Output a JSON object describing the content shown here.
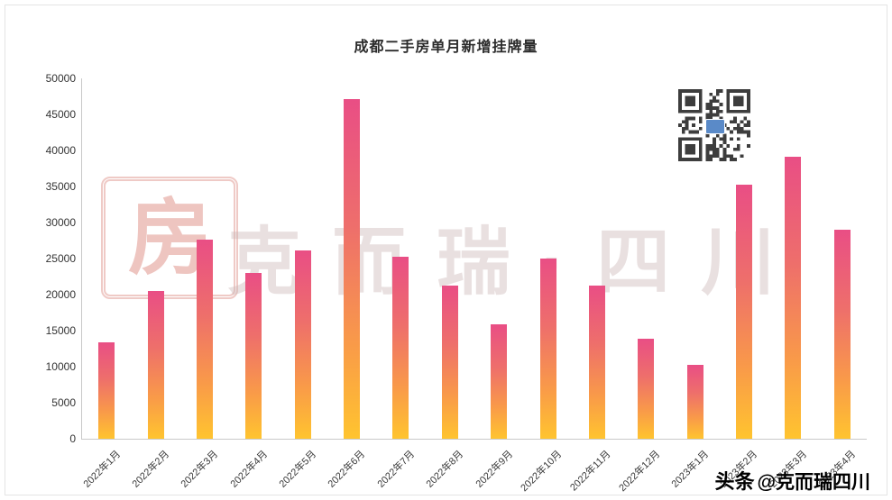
{
  "title": "成都二手房单月新增挂牌量",
  "watermark": {
    "text": "克而瑞·四川",
    "seal_char": "房"
  },
  "footer": {
    "brand": "头条",
    "handle": "@克而瑞四川"
  },
  "icons": {
    "qr_code": "qr-code",
    "qr_center_badge": "wechat-badge"
  },
  "colors": {
    "bar_top": "#e94e85",
    "bar_bottom": "#ffc42f",
    "axis": "#c9c9c9",
    "watermark": "#cbb7b7",
    "seal_red": "#c63e30"
  },
  "chart_data": {
    "type": "bar",
    "title": "成都二手房单月新增挂牌量",
    "categories": [
      "2022年1月",
      "2022年2月",
      "2022年3月",
      "2022年4月",
      "2022年5月",
      "2022年6月",
      "2022年7月",
      "2022年8月",
      "2022年9月",
      "2022年10月",
      "2022年11月",
      "2022年12月",
      "2023年1月",
      "2023年2月",
      "2023年3月",
      "2023年4月"
    ],
    "values": [
      13400,
      20500,
      27600,
      23000,
      26100,
      47100,
      25300,
      21200,
      15900,
      25000,
      21300,
      13900,
      10300,
      35200,
      39100,
      29000
    ],
    "xlabel": "",
    "ylabel": "",
    "ylim": [
      0,
      50000
    ],
    "ytick_interval": 5000,
    "grid": false,
    "legend": "none",
    "bar_gradient": [
      "#e94e85",
      "#ffc42f"
    ]
  }
}
